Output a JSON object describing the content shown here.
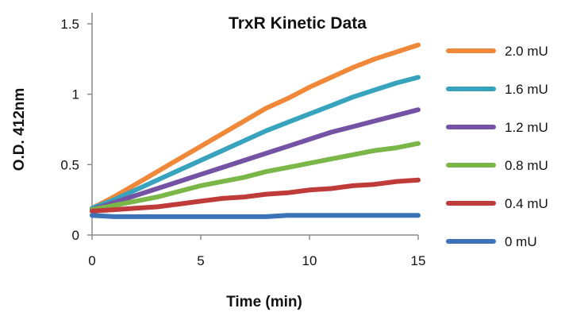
{
  "chart_data": {
    "type": "line",
    "title": "TrxR Kinetic Data",
    "xlabel": "Time (min)",
    "ylabel": "O.D. 412nm",
    "xlim": [
      0,
      15
    ],
    "ylim": [
      0,
      1.5
    ],
    "xticks": [
      0,
      5,
      10,
      15
    ],
    "yticks": [
      0,
      0.5,
      1,
      1.5
    ],
    "ytick_labels": [
      "0",
      "0.5",
      "1",
      "1.5"
    ],
    "grid": false,
    "legend_position": "right",
    "x": [
      0,
      1,
      2,
      3,
      4,
      5,
      6,
      7,
      8,
      9,
      10,
      11,
      12,
      13,
      14,
      15
    ],
    "series": [
      {
        "name": "2.0 mU",
        "color": "#F0883A",
        "values": [
          0.19,
          0.27,
          0.36,
          0.45,
          0.54,
          0.63,
          0.72,
          0.81,
          0.9,
          0.97,
          1.05,
          1.12,
          1.19,
          1.25,
          1.3,
          1.35
        ]
      },
      {
        "name": "1.6 mU",
        "color": "#38A3BD",
        "values": [
          0.19,
          0.25,
          0.32,
          0.39,
          0.46,
          0.53,
          0.6,
          0.67,
          0.74,
          0.8,
          0.86,
          0.92,
          0.98,
          1.03,
          1.08,
          1.12
        ]
      },
      {
        "name": "1.2 mU",
        "color": "#7453A4",
        "values": [
          0.18,
          0.23,
          0.28,
          0.33,
          0.38,
          0.43,
          0.48,
          0.53,
          0.58,
          0.63,
          0.68,
          0.73,
          0.77,
          0.81,
          0.85,
          0.89
        ]
      },
      {
        "name": "0.8 mU",
        "color": "#7AB648",
        "values": [
          0.18,
          0.21,
          0.24,
          0.27,
          0.31,
          0.35,
          0.38,
          0.41,
          0.45,
          0.48,
          0.51,
          0.54,
          0.57,
          0.6,
          0.62,
          0.65
        ]
      },
      {
        "name": "0.4 mU",
        "color": "#BE3B3A",
        "values": [
          0.17,
          0.18,
          0.19,
          0.2,
          0.22,
          0.24,
          0.26,
          0.27,
          0.29,
          0.3,
          0.32,
          0.33,
          0.35,
          0.36,
          0.38,
          0.39
        ]
      },
      {
        "name": "0 mU",
        "color": "#3C73B6",
        "values": [
          0.14,
          0.13,
          0.13,
          0.13,
          0.13,
          0.13,
          0.13,
          0.13,
          0.13,
          0.14,
          0.14,
          0.14,
          0.14,
          0.14,
          0.14,
          0.14
        ]
      }
    ]
  }
}
